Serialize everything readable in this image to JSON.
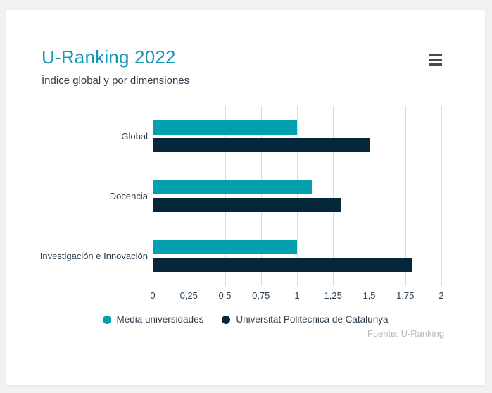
{
  "window": {
    "background_color": "#f1f1f2"
  },
  "card": {
    "title": "U-Ranking 2022",
    "subtitle": "Índice global y por dimensiones",
    "source": "Fuente: U-Ranking"
  },
  "colors": {
    "page_background": "#f1f1f2",
    "card_background": "#ffffff",
    "title_text": "#1796b4",
    "body_text": "#2c3e4e",
    "gridline": "#dcdcdc",
    "zero_line": "#b7c8db",
    "series_media": "#00a0af",
    "series_upc": "#062639",
    "source_text": "#b9b9b9",
    "menu_icon": "#4a4a4a"
  },
  "chart_data": {
    "type": "bar",
    "orientation": "horizontal",
    "title": "U-Ranking 2022",
    "subtitle": "Índice global y por dimensiones",
    "categories": [
      "Global",
      "Docencia",
      "Investigación e Innovación"
    ],
    "series": [
      {
        "name": "Media universidades",
        "color": "#00a0af",
        "values": [
          1.0,
          1.1,
          1.0
        ]
      },
      {
        "name": "Universitat Politècnica de Catalunya",
        "color": "#062639",
        "values": [
          1.5,
          1.3,
          1.8
        ]
      }
    ],
    "xlim": [
      0,
      2
    ],
    "x_ticks": [
      {
        "value": 0,
        "label": "0"
      },
      {
        "value": 0.25,
        "label": "0,25"
      },
      {
        "value": 0.5,
        "label": "0,5"
      },
      {
        "value": 0.75,
        "label": "0,75"
      },
      {
        "value": 1,
        "label": "1"
      },
      {
        "value": 1.25,
        "label": "1,25"
      },
      {
        "value": 1.5,
        "label": "1,5"
      },
      {
        "value": 1.75,
        "label": "1,75"
      },
      {
        "value": 2,
        "label": "2"
      }
    ],
    "grid": true,
    "legend_position": "bottom",
    "source": "Fuente: U-Ranking"
  }
}
